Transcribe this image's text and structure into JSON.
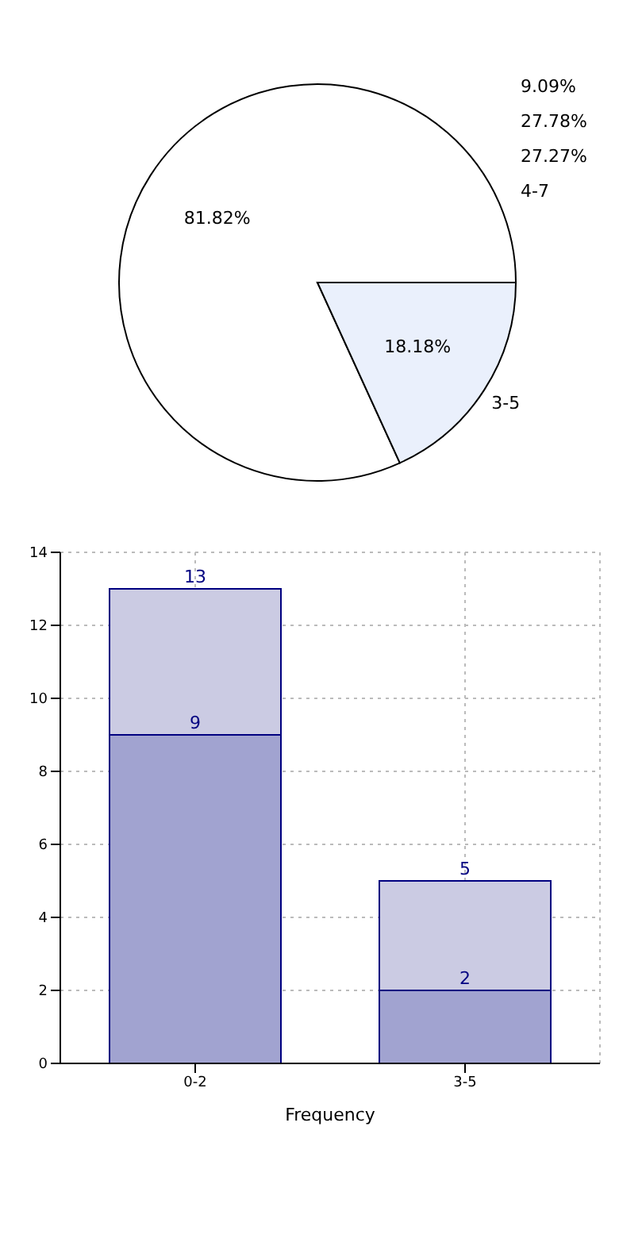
{
  "chart_data": [
    {
      "type": "pie",
      "categories": [
        null,
        "3-5"
      ],
      "values": [
        81.82,
        18.18
      ],
      "colors": [
        "#ffffff",
        "#eaf0fc"
      ],
      "value_labels": [
        "81.82%",
        "18.18%"
      ],
      "annotations": [
        "9.09%",
        "27.78%",
        "27.27%",
        "4-7"
      ]
    },
    {
      "type": "bar",
      "categories": [
        "0-2",
        "3-5"
      ],
      "xlabel": "Frequency",
      "series": [
        {
          "color": "#a1a3d0",
          "values": [
            9,
            2
          ],
          "value_labels": [
            "9",
            "2"
          ]
        },
        {
          "color": "#cbcbe3",
          "values": [
            4,
            3
          ]
        }
      ],
      "totals": [
        "13",
        "5"
      ],
      "stacked": true,
      "ylim": [
        0,
        14
      ],
      "yticks": [
        0,
        2,
        4,
        6,
        8,
        10,
        12,
        14
      ],
      "grid": true
    }
  ]
}
